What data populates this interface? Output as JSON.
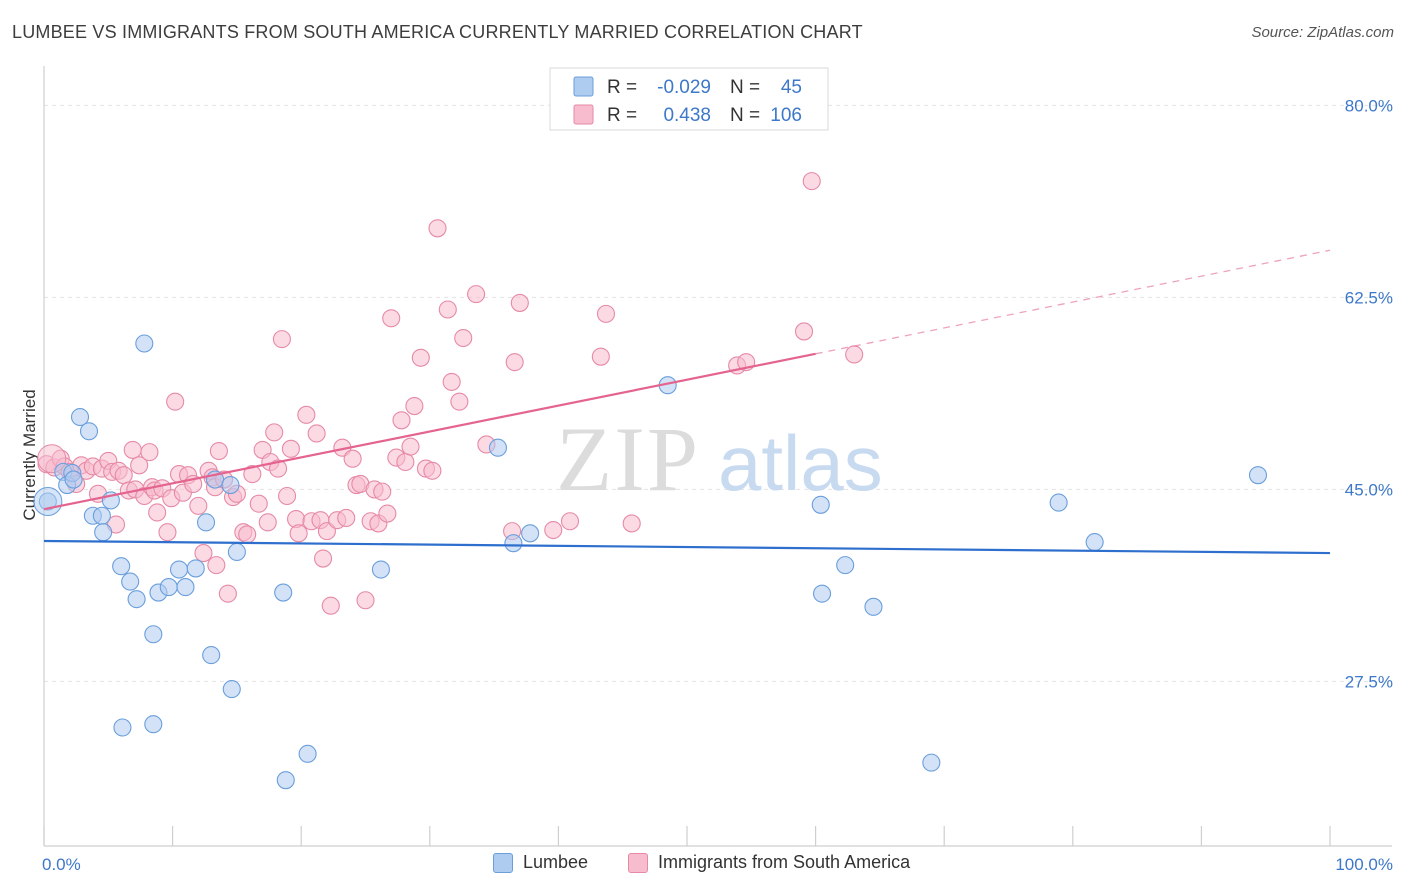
{
  "header": {
    "title": "LUMBEE VS IMMIGRANTS FROM SOUTH AMERICA CURRENTLY MARRIED CORRELATION CHART",
    "source": "Source: ZipAtlas.com"
  },
  "watermark": {
    "zip": "ZIP",
    "atlas": "atlas"
  },
  "colors": {
    "lumbee_fill": "#aecbf0",
    "lumbee_stroke": "#6a9fdc",
    "lumbee_line": "#2e6fce",
    "immig_fill": "#f7bccd",
    "immig_stroke": "#e68aa6",
    "immig_line": "#e4648f",
    "axis_text": "#3d78c9"
  },
  "legend_top": {
    "rows": [
      {
        "r_label": "R = ",
        "r_value": "-0.029",
        "n_label": "N = ",
        "n_value": "45"
      },
      {
        "r_label": "R = ",
        "r_value": " 0.438",
        "n_label": "N = ",
        "n_value": "106"
      }
    ]
  },
  "legend_bottom": {
    "items": [
      {
        "label": "Lumbee"
      },
      {
        "label": "Immigrants from South America"
      }
    ]
  },
  "chart_data": {
    "type": "scatter",
    "title": "LUMBEE VS IMMIGRANTS FROM SOUTH AMERICA CURRENTLY MARRIED CORRELATION CHART",
    "xlabel": "",
    "ylabel": "Currently Married",
    "x_tick_labels": [
      "0.0%",
      "100.0%"
    ],
    "y_tick_labels": [
      "80.0%",
      "62.5%",
      "45.0%",
      "27.5%"
    ],
    "y_ticks": [
      80.0,
      62.5,
      45.0,
      27.5
    ],
    "xlim": [
      0,
      100
    ],
    "ylim": [
      12.5,
      82.5
    ],
    "grid": true,
    "legend_position": "top-center",
    "series": [
      {
        "name": "Lumbee",
        "r": -0.029,
        "n": 45,
        "trend": {
          "x": [
            0,
            100
          ],
          "y": [
            40.3,
            39.2
          ]
        },
        "points": [
          [
            0.3,
            43.9
          ],
          [
            1.5,
            46.6
          ],
          [
            1.8,
            45.4
          ],
          [
            2.2,
            46.5
          ],
          [
            2.3,
            45.9
          ],
          [
            2.8,
            51.6
          ],
          [
            3.5,
            50.3
          ],
          [
            3.8,
            42.6
          ],
          [
            4.5,
            42.6
          ],
          [
            4.6,
            41.1
          ],
          [
            5.2,
            44.0
          ],
          [
            6.0,
            38.0
          ],
          [
            6.7,
            36.6
          ],
          [
            7.2,
            35.0
          ],
          [
            7.8,
            58.3
          ],
          [
            8.5,
            31.8
          ],
          [
            8.9,
            35.6
          ],
          [
            9.7,
            36.1
          ],
          [
            10.5,
            37.7
          ],
          [
            11.0,
            36.1
          ],
          [
            11.8,
            37.8
          ],
          [
            12.6,
            42.0
          ],
          [
            13.0,
            29.9
          ],
          [
            13.3,
            45.9
          ],
          [
            14.5,
            45.4
          ],
          [
            14.6,
            26.8
          ],
          [
            15.0,
            39.3
          ],
          [
            18.6,
            35.6
          ],
          [
            18.8,
            18.5
          ],
          [
            20.5,
            20.9
          ],
          [
            26.2,
            37.7
          ],
          [
            35.3,
            48.8
          ],
          [
            36.5,
            40.1
          ],
          [
            37.8,
            41.0
          ],
          [
            48.5,
            54.5
          ],
          [
            60.4,
            43.6
          ],
          [
            60.5,
            35.5
          ],
          [
            62.3,
            38.1
          ],
          [
            64.5,
            34.3
          ],
          [
            69.0,
            20.1
          ],
          [
            78.9,
            43.8
          ],
          [
            81.7,
            40.2
          ],
          [
            94.4,
            46.3
          ],
          [
            6.1,
            23.3
          ],
          [
            8.5,
            23.6
          ]
        ]
      },
      {
        "name": "Immigrants from South America",
        "r": 0.438,
        "n": 106,
        "trend": {
          "x": [
            0,
            100
          ],
          "y": [
            43.2,
            66.8
          ]
        },
        "trend_solid_to_x": 60,
        "points": [
          [
            0.2,
            47.3
          ],
          [
            0.8,
            47.0
          ],
          [
            1.3,
            47.8
          ],
          [
            1.6,
            47.1
          ],
          [
            2.0,
            46.6
          ],
          [
            2.5,
            45.5
          ],
          [
            2.9,
            47.2
          ],
          [
            3.3,
            46.7
          ],
          [
            3.8,
            47.1
          ],
          [
            4.2,
            44.6
          ],
          [
            4.5,
            46.9
          ],
          [
            5.0,
            47.6
          ],
          [
            5.3,
            46.6
          ],
          [
            5.6,
            41.8
          ],
          [
            5.8,
            46.7
          ],
          [
            6.2,
            46.3
          ],
          [
            6.6,
            44.9
          ],
          [
            6.9,
            48.6
          ],
          [
            7.1,
            45.0
          ],
          [
            7.4,
            47.2
          ],
          [
            7.8,
            44.4
          ],
          [
            8.2,
            48.4
          ],
          [
            8.4,
            45.2
          ],
          [
            8.6,
            44.9
          ],
          [
            8.8,
            42.9
          ],
          [
            9.2,
            45.1
          ],
          [
            9.6,
            41.1
          ],
          [
            9.9,
            44.2
          ],
          [
            10.2,
            53.0
          ],
          [
            10.5,
            46.4
          ],
          [
            10.8,
            44.7
          ],
          [
            11.2,
            46.3
          ],
          [
            11.6,
            45.5
          ],
          [
            12.0,
            43.5
          ],
          [
            12.4,
            39.2
          ],
          [
            12.8,
            46.7
          ],
          [
            13.1,
            46.1
          ],
          [
            13.3,
            45.2
          ],
          [
            13.4,
            38.1
          ],
          [
            13.6,
            48.5
          ],
          [
            14.0,
            45.9
          ],
          [
            14.3,
            35.5
          ],
          [
            14.7,
            44.3
          ],
          [
            15.0,
            44.6
          ],
          [
            15.5,
            41.1
          ],
          [
            15.8,
            40.9
          ],
          [
            16.2,
            46.4
          ],
          [
            16.7,
            43.7
          ],
          [
            17.0,
            48.6
          ],
          [
            17.4,
            42.0
          ],
          [
            17.6,
            47.5
          ],
          [
            17.9,
            50.2
          ],
          [
            18.2,
            46.9
          ],
          [
            18.5,
            58.7
          ],
          [
            18.9,
            44.4
          ],
          [
            19.2,
            48.7
          ],
          [
            19.6,
            42.3
          ],
          [
            19.8,
            41.0
          ],
          [
            20.4,
            51.8
          ],
          [
            20.8,
            42.1
          ],
          [
            21.2,
            50.1
          ],
          [
            21.5,
            42.2
          ],
          [
            21.7,
            38.7
          ],
          [
            22.0,
            41.2
          ],
          [
            22.3,
            34.4
          ],
          [
            22.8,
            42.2
          ],
          [
            23.2,
            48.8
          ],
          [
            23.5,
            42.4
          ],
          [
            24.0,
            47.8
          ],
          [
            24.3,
            45.4
          ],
          [
            24.6,
            45.5
          ],
          [
            25.0,
            34.9
          ],
          [
            25.4,
            42.1
          ],
          [
            25.7,
            45.0
          ],
          [
            26.0,
            41.9
          ],
          [
            26.3,
            44.8
          ],
          [
            26.7,
            42.8
          ],
          [
            27.0,
            60.6
          ],
          [
            27.4,
            47.9
          ],
          [
            27.8,
            51.3
          ],
          [
            28.1,
            47.5
          ],
          [
            28.5,
            48.9
          ],
          [
            28.8,
            52.6
          ],
          [
            29.3,
            57.0
          ],
          [
            29.7,
            46.9
          ],
          [
            30.2,
            46.7
          ],
          [
            30.6,
            68.8
          ],
          [
            31.4,
            61.4
          ],
          [
            31.7,
            54.8
          ],
          [
            32.3,
            53.0
          ],
          [
            32.6,
            58.8
          ],
          [
            33.6,
            62.8
          ],
          [
            34.4,
            49.1
          ],
          [
            36.4,
            41.2
          ],
          [
            36.6,
            56.6
          ],
          [
            37.0,
            62.0
          ],
          [
            39.6,
            41.3
          ],
          [
            40.9,
            42.1
          ],
          [
            43.3,
            57.1
          ],
          [
            43.7,
            61.0
          ],
          [
            45.7,
            41.9
          ],
          [
            53.9,
            56.3
          ],
          [
            54.6,
            56.6
          ],
          [
            59.1,
            59.4
          ],
          [
            63.0,
            57.3
          ],
          [
            59.7,
            73.1
          ]
        ]
      }
    ]
  }
}
